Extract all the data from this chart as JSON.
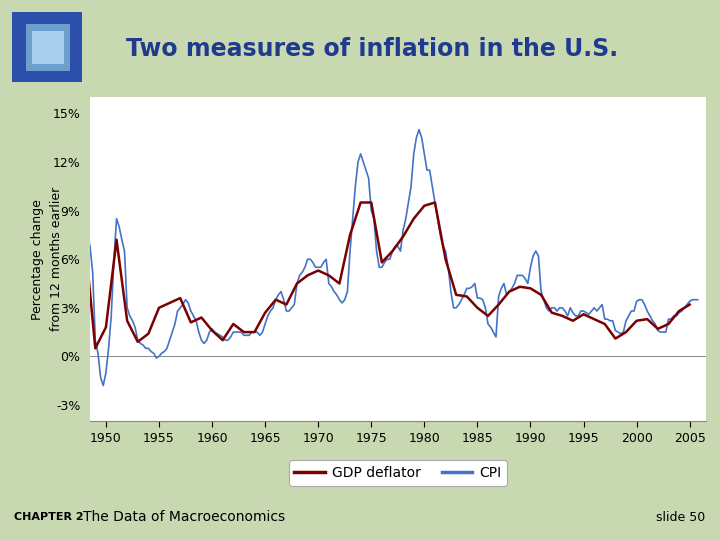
{
  "title": "Two measures of inflation in the U.S.",
  "ylabel": "Percentage change\nfrom 12 months earlier",
  "title_color": "#1F3A8F",
  "title_fontsize": 17,
  "ylabel_fontsize": 9,
  "panel_bg": "#FFFFFF",
  "outer_bg": "#C8D8B0",
  "cpi_color": "#4472C4",
  "gdp_color": "#7B0000",
  "ylim": [
    -4,
    16
  ],
  "yticks": [
    -3,
    0,
    3,
    6,
    9,
    12,
    15
  ],
  "ytick_labels": [
    "-3%",
    "0%",
    "3%",
    "6%",
    "9%",
    "12%",
    "15%"
  ],
  "xlim": [
    1948.5,
    2006.5
  ],
  "xticks": [
    1950,
    1955,
    1960,
    1965,
    1970,
    1975,
    1980,
    1985,
    1990,
    1995,
    2000,
    2005
  ],
  "legend_labels": [
    "GDP deflator",
    "CPI"
  ],
  "footer_left": "CHAPTER 2",
  "footer_mid": "The Data of Macroeconomics",
  "footer_right": "slide 50",
  "years_gdp": [
    1948,
    1949,
    1950,
    1951,
    1952,
    1953,
    1954,
    1955,
    1956,
    1957,
    1958,
    1959,
    1960,
    1961,
    1962,
    1963,
    1964,
    1965,
    1966,
    1967,
    1968,
    1969,
    1970,
    1971,
    1972,
    1973,
    1974,
    1975,
    1976,
    1977,
    1978,
    1979,
    1980,
    1981,
    1982,
    1983,
    1984,
    1985,
    1986,
    1987,
    1988,
    1989,
    1990,
    1991,
    1992,
    1993,
    1994,
    1995,
    1996,
    1997,
    1998,
    1999,
    2000,
    2001,
    2002,
    2003,
    2004,
    2005
  ],
  "gdp": [
    7.4,
    0.5,
    1.8,
    7.2,
    2.2,
    0.9,
    1.4,
    3.0,
    3.3,
    3.6,
    2.1,
    2.4,
    1.6,
    1.0,
    2.0,
    1.5,
    1.5,
    2.7,
    3.5,
    3.2,
    4.5,
    5.0,
    5.3,
    5.0,
    4.5,
    7.5,
    9.5,
    9.5,
    5.8,
    6.5,
    7.4,
    8.5,
    9.3,
    9.5,
    6.0,
    3.8,
    3.7,
    3.0,
    2.5,
    3.2,
    4.0,
    4.3,
    4.2,
    3.8,
    2.7,
    2.5,
    2.2,
    2.6,
    2.3,
    2.0,
    1.1,
    1.5,
    2.2,
    2.3,
    1.7,
    2.0,
    2.8,
    3.2
  ],
  "years_cpi": [
    1948,
    1948.25,
    1948.5,
    1948.75,
    1949,
    1949.25,
    1949.5,
    1949.75,
    1950,
    1950.25,
    1950.5,
    1950.75,
    1951,
    1951.25,
    1951.5,
    1951.75,
    1952,
    1952.25,
    1952.5,
    1952.75,
    1953,
    1953.25,
    1953.5,
    1953.75,
    1954,
    1954.25,
    1954.5,
    1954.75,
    1955,
    1955.25,
    1955.5,
    1955.75,
    1956,
    1956.25,
    1956.5,
    1956.75,
    1957,
    1957.25,
    1957.5,
    1957.75,
    1958,
    1958.25,
    1958.5,
    1958.75,
    1959,
    1959.25,
    1959.5,
    1959.75,
    1960,
    1960.25,
    1960.5,
    1960.75,
    1961,
    1961.25,
    1961.5,
    1961.75,
    1962,
    1962.25,
    1962.5,
    1962.75,
    1963,
    1963.25,
    1963.5,
    1963.75,
    1964,
    1964.25,
    1964.5,
    1964.75,
    1965,
    1965.25,
    1965.5,
    1965.75,
    1966,
    1966.25,
    1966.5,
    1966.75,
    1967,
    1967.25,
    1967.5,
    1967.75,
    1968,
    1968.25,
    1968.5,
    1968.75,
    1969,
    1969.25,
    1969.5,
    1969.75,
    1970,
    1970.25,
    1970.5,
    1970.75,
    1971,
    1971.25,
    1971.5,
    1971.75,
    1972,
    1972.25,
    1972.5,
    1972.75,
    1973,
    1973.25,
    1973.5,
    1973.75,
    1974,
    1974.25,
    1974.5,
    1974.75,
    1975,
    1975.25,
    1975.5,
    1975.75,
    1976,
    1976.25,
    1976.5,
    1976.75,
    1977,
    1977.25,
    1977.5,
    1977.75,
    1978,
    1978.25,
    1978.5,
    1978.75,
    1979,
    1979.25,
    1979.5,
    1979.75,
    1980,
    1980.25,
    1980.5,
    1980.75,
    1981,
    1981.25,
    1981.5,
    1981.75,
    1982,
    1982.25,
    1982.5,
    1982.75,
    1983,
    1983.25,
    1983.5,
    1983.75,
    1984,
    1984.25,
    1984.5,
    1984.75,
    1985,
    1985.25,
    1985.5,
    1985.75,
    1986,
    1986.25,
    1986.5,
    1986.75,
    1987,
    1987.25,
    1987.5,
    1987.75,
    1988,
    1988.25,
    1988.5,
    1988.75,
    1989,
    1989.25,
    1989.5,
    1989.75,
    1990,
    1990.25,
    1990.5,
    1990.75,
    1991,
    1991.25,
    1991.5,
    1991.75,
    1992,
    1992.25,
    1992.5,
    1992.75,
    1993,
    1993.25,
    1993.5,
    1993.75,
    1994,
    1994.25,
    1994.5,
    1994.75,
    1995,
    1995.25,
    1995.5,
    1995.75,
    1996,
    1996.25,
    1996.5,
    1996.75,
    1997,
    1997.25,
    1997.5,
    1997.75,
    1998,
    1998.25,
    1998.5,
    1998.75,
    1999,
    1999.25,
    1999.5,
    1999.75,
    2000,
    2000.25,
    2000.5,
    2000.75,
    2001,
    2001.25,
    2001.5,
    2001.75,
    2002,
    2002.25,
    2002.5,
    2002.75,
    2003,
    2003.25,
    2003.5,
    2003.75,
    2004,
    2004.25,
    2004.5,
    2004.75,
    2005,
    2005.25,
    2005.5,
    2005.75
  ],
  "cpi": [
    8.1,
    7.5,
    6.8,
    5.2,
    1.0,
    0.2,
    -1.3,
    -1.8,
    -1.0,
    0.5,
    2.5,
    5.9,
    8.5,
    8.0,
    7.2,
    6.5,
    3.0,
    2.5,
    2.2,
    1.8,
    1.0,
    0.8,
    0.7,
    0.5,
    0.5,
    0.3,
    0.2,
    -0.1,
    0.0,
    0.2,
    0.3,
    0.5,
    1.0,
    1.5,
    2.0,
    2.8,
    3.0,
    3.2,
    3.5,
    3.3,
    2.8,
    2.5,
    2.2,
    1.5,
    1.0,
    0.8,
    1.0,
    1.5,
    1.7,
    1.5,
    1.4,
    1.3,
    1.2,
    1.0,
    1.0,
    1.2,
    1.5,
    1.5,
    1.5,
    1.5,
    1.3,
    1.3,
    1.3,
    1.5,
    1.5,
    1.5,
    1.3,
    1.5,
    2.0,
    2.5,
    2.8,
    3.0,
    3.5,
    3.8,
    4.0,
    3.5,
    2.8,
    2.8,
    3.0,
    3.2,
    4.5,
    5.0,
    5.2,
    5.5,
    6.0,
    6.0,
    5.8,
    5.5,
    5.5,
    5.5,
    5.8,
    6.0,
    4.5,
    4.3,
    4.0,
    3.8,
    3.5,
    3.3,
    3.5,
    4.0,
    6.5,
    8.5,
    10.5,
    12.0,
    12.5,
    12.0,
    11.5,
    11.0,
    9.0,
    8.5,
    6.5,
    5.5,
    5.5,
    5.8,
    6.0,
    6.0,
    6.5,
    6.8,
    6.8,
    6.5,
    7.8,
    8.5,
    9.5,
    10.5,
    12.5,
    13.5,
    14.0,
    13.5,
    12.5,
    11.5,
    11.5,
    10.5,
    9.5,
    8.5,
    7.5,
    6.8,
    6.5,
    5.5,
    4.0,
    3.0,
    3.0,
    3.2,
    3.5,
    3.8,
    4.2,
    4.2,
    4.3,
    4.5,
    3.6,
    3.6,
    3.5,
    3.0,
    2.0,
    1.8,
    1.5,
    1.2,
    3.7,
    4.2,
    4.5,
    3.8,
    4.0,
    4.2,
    4.5,
    5.0,
    5.0,
    5.0,
    4.8,
    4.5,
    5.5,
    6.2,
    6.5,
    6.2,
    4.0,
    3.5,
    3.0,
    2.8,
    3.0,
    3.0,
    2.8,
    3.0,
    3.0,
    2.8,
    2.5,
    3.0,
    2.7,
    2.5,
    2.5,
    2.8,
    2.8,
    2.7,
    2.6,
    2.8,
    3.0,
    2.8,
    3.0,
    3.2,
    2.3,
    2.3,
    2.2,
    2.2,
    1.6,
    1.5,
    1.4,
    1.5,
    2.2,
    2.5,
    2.8,
    2.8,
    3.4,
    3.5,
    3.5,
    3.2,
    2.8,
    2.5,
    2.2,
    2.0,
    1.6,
    1.5,
    1.5,
    1.5,
    2.3,
    2.3,
    2.5,
    2.5,
    2.7,
    2.8,
    3.0,
    3.2,
    3.4,
    3.5,
    3.5,
    3.5
  ]
}
